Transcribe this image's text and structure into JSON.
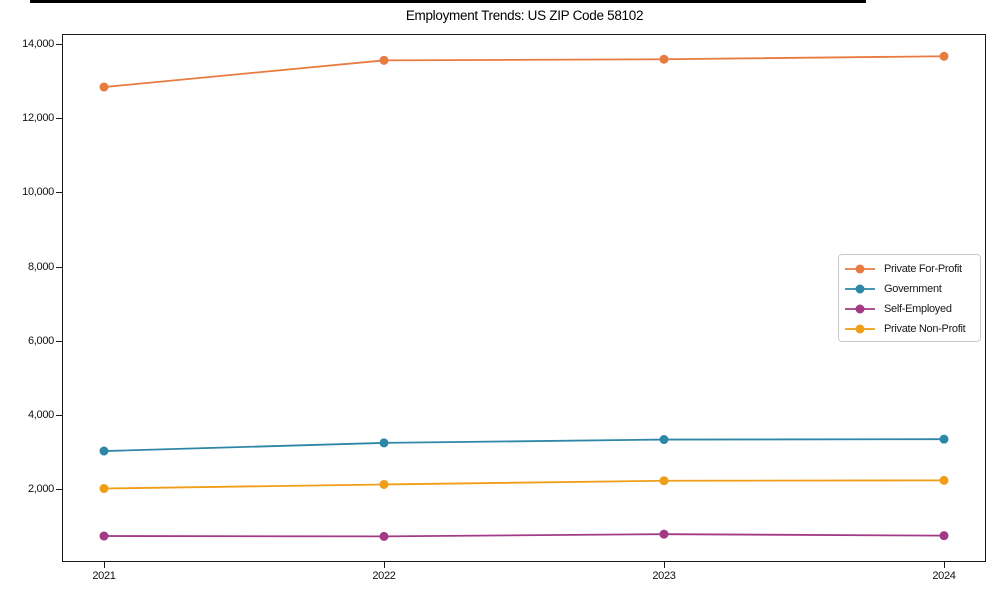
{
  "chart_data": {
    "type": "line",
    "title": "Employment Trends: US ZIP Code 58102",
    "categories": [
      "2021",
      "2022",
      "2023",
      "2024"
    ],
    "x": [
      2021,
      2022,
      2023,
      2024
    ],
    "series": [
      {
        "name": "Private For-Profit",
        "color": "#e87b40",
        "values": [
          12850,
          13570,
          13600,
          13680
        ]
      },
      {
        "name": "Government",
        "color": "#2f87a7",
        "values": [
          3040,
          3260,
          3350,
          3360
        ]
      },
      {
        "name": "Self-Employed",
        "color": "#a33a85",
        "values": [
          750,
          740,
          800,
          760
        ]
      },
      {
        "name": "Private Non-Profit",
        "color": "#f09d17",
        "values": [
          2030,
          2140,
          2240,
          2250
        ]
      }
    ],
    "yticks": {
      "values": [
        2000,
        4000,
        6000,
        8000,
        10000,
        12000,
        14000
      ],
      "labels": [
        "2,000",
        "4,000",
        "6,000",
        "8,000",
        "10,000",
        "12,000",
        "14,000"
      ]
    },
    "ylim": [
      50,
      14280
    ],
    "xlim": [
      2020.85,
      2024.15
    ],
    "grid": false,
    "marker": "circle",
    "legend_position": "center-right",
    "axis_color": "#1a1a1a"
  }
}
